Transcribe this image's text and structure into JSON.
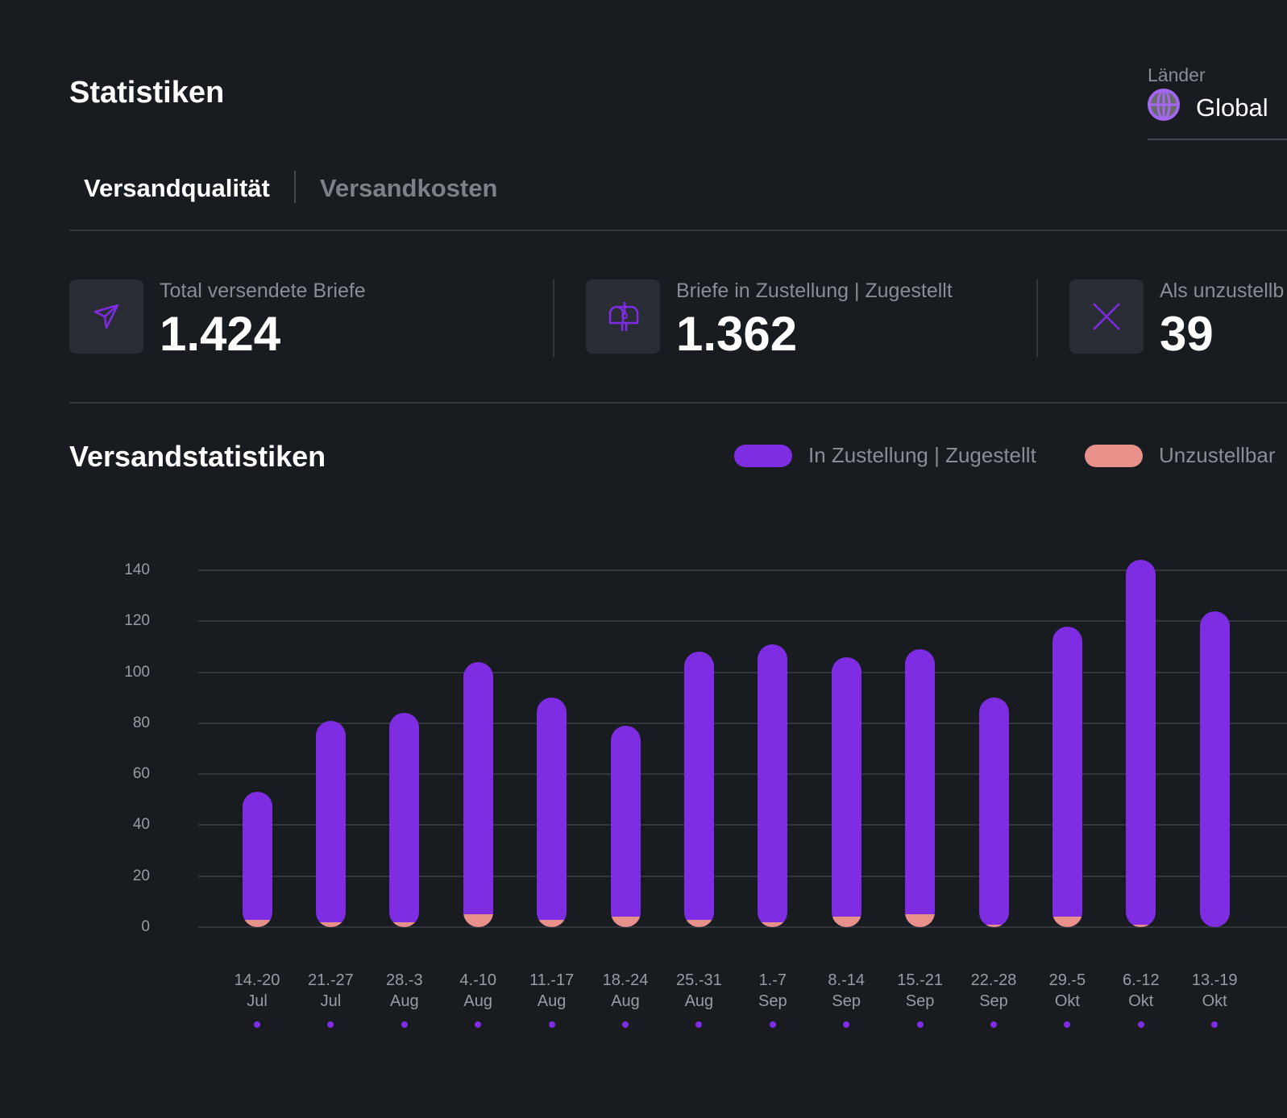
{
  "header": {
    "title": "Statistiken",
    "country_label": "Länder",
    "country_value": "Global",
    "country_icon": "globe-icon"
  },
  "tabs": [
    {
      "label": "Versandqualität",
      "active": true
    },
    {
      "label": "Versandkosten",
      "active": false
    }
  ],
  "stats": [
    {
      "label": "Total versendete Briefe",
      "value": "1.424",
      "icon": "send-icon"
    },
    {
      "label": "Briefe in Zustellung | Zugestellt",
      "value": "1.362",
      "icon": "mailbox-icon"
    },
    {
      "label": "Als unzustellb",
      "value": "39",
      "icon": "x-icon"
    }
  ],
  "colors": {
    "accent": "#7f2de3",
    "undeliverable": "#e8918a",
    "background": "#181b20"
  },
  "chart_data": {
    "type": "bar",
    "stacked": true,
    "title": "Versandstatistiken",
    "categories": [
      [
        "14.-20",
        "Jul"
      ],
      [
        "21.-27",
        "Jul"
      ],
      [
        "28.-3",
        "Aug"
      ],
      [
        "4.-10",
        "Aug"
      ],
      [
        "11.-17",
        "Aug"
      ],
      [
        "18.-24",
        "Aug"
      ],
      [
        "25.-31",
        "Aug"
      ],
      [
        "1.-7",
        "Sep"
      ],
      [
        "8.-14",
        "Sep"
      ],
      [
        "15.-21",
        "Sep"
      ],
      [
        "22.-28",
        "Sep"
      ],
      [
        "29.-5",
        "Okt"
      ],
      [
        "6.-12",
        "Okt"
      ],
      [
        "13.-19",
        "Okt"
      ]
    ],
    "series": [
      {
        "name": "In Zustellung | Zugestellt",
        "color": "#7f2de3",
        "values": [
          50,
          79,
          82,
          99,
          87,
          75,
          105,
          109,
          102,
          104,
          89,
          114,
          143,
          124
        ]
      },
      {
        "name": "Unzustellbar",
        "color": "#e8918a",
        "values": [
          3,
          2,
          2,
          5,
          3,
          4,
          3,
          2,
          4,
          5,
          1,
          4,
          1,
          0
        ]
      }
    ],
    "yticks": [
      0,
      20,
      40,
      60,
      80,
      100,
      120,
      140
    ],
    "ylim": [
      0,
      140
    ],
    "grid": true,
    "legend": "top-right"
  }
}
